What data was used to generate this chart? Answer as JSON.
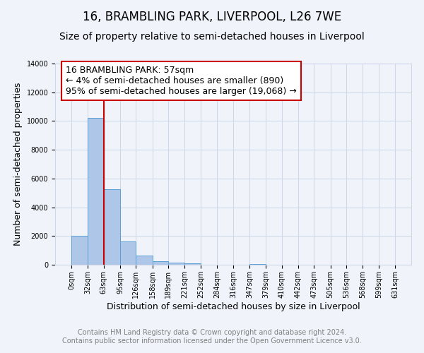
{
  "title": "16, BRAMBLING PARK, LIVERPOOL, L26 7WE",
  "subtitle": "Size of property relative to semi-detached houses in Liverpool",
  "xlabel": "Distribution of semi-detached houses by size in Liverpool",
  "ylabel": "Number of semi-detached properties",
  "footer_line1": "Contains HM Land Registry data © Crown copyright and database right 2024.",
  "footer_line2": "Contains public sector information licensed under the Open Government Licence v3.0.",
  "annotation_line1": "16 BRAMBLING PARK: 57sqm",
  "annotation_line2": "← 4% of semi-detached houses are smaller (890)",
  "annotation_line3": "95% of semi-detached houses are larger (19,068) →",
  "property_size": 57,
  "bin_edges": [
    0,
    32,
    63,
    95,
    126,
    158,
    189,
    221,
    252,
    284,
    316,
    347,
    379,
    410,
    442,
    473,
    505,
    536,
    568,
    599,
    631
  ],
  "bar_heights": [
    2000,
    10200,
    5250,
    1600,
    650,
    230,
    130,
    80,
    0,
    0,
    0,
    60,
    0,
    0,
    0,
    0,
    0,
    0,
    0,
    0
  ],
  "bar_color": "#aec6e8",
  "bar_edge_color": "#5a9fd4",
  "vline_color": "#cc0000",
  "vline_x": 63,
  "annotation_box_color": "#ffffff",
  "annotation_box_edge_color": "#cc0000",
  "ylim": [
    0,
    14000
  ],
  "yticks": [
    0,
    2000,
    4000,
    6000,
    8000,
    10000,
    12000,
    14000
  ],
  "grid_color": "#d0d8e8",
  "background_color": "#f0f4fa",
  "title_fontsize": 12,
  "subtitle_fontsize": 10,
  "axis_label_fontsize": 9,
  "tick_fontsize": 7,
  "annotation_fontsize": 9,
  "footer_fontsize": 7
}
